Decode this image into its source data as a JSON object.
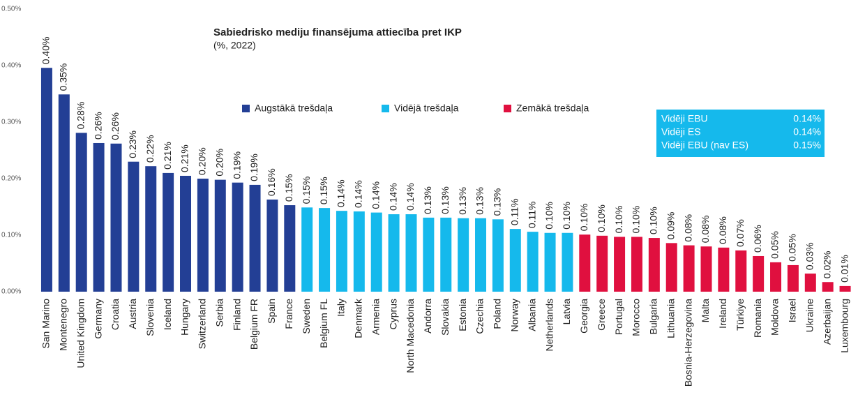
{
  "chart_data": {
    "type": "bar",
    "title": "Sabiedrisko mediju finansējuma attiecība pret IKP",
    "subtitle": "(%, 2022)",
    "categories": [
      "San Marino",
      "Montenegro",
      "United Kingdom",
      "Germany",
      "Croatia",
      "Austria",
      "Slovenia",
      "Iceland",
      "Hungary",
      "Switzerland",
      "Serbia",
      "Finland",
      "Belgium FR",
      "Spain",
      "France",
      "Sweden",
      "Belgium FL",
      "Italy",
      "Denmark",
      "Armenia",
      "Cyprus",
      "North Macedonia",
      "Andorra",
      "Slovakia",
      "Estonia",
      "Czechia",
      "Poland",
      "Norway",
      "Albania",
      "Netherlands",
      "Latvia",
      "Georgia",
      "Greece",
      "Portugal",
      "Morocco",
      "Bulgaria",
      "Lithuania",
      "Bosnia-Herzegovina",
      "Malta",
      "Ireland",
      "Türkiye",
      "Romania",
      "Moldova",
      "Israel",
      "Ukraine",
      "Azerbaijan",
      "Luxembourg"
    ],
    "values": [
      0.396,
      0.349,
      0.281,
      0.263,
      0.262,
      0.23,
      0.222,
      0.21,
      0.205,
      0.2,
      0.198,
      0.193,
      0.189,
      0.163,
      0.153,
      0.149,
      0.148,
      0.143,
      0.142,
      0.14,
      0.137,
      0.137,
      0.131,
      0.131,
      0.13,
      0.13,
      0.128,
      0.111,
      0.106,
      0.104,
      0.104,
      0.101,
      0.099,
      0.097,
      0.097,
      0.095,
      0.086,
      0.082,
      0.08,
      0.078,
      0.073,
      0.063,
      0.052,
      0.047,
      0.032,
      0.017,
      0.01
    ],
    "value_labels": [
      "0.40%",
      "0.35%",
      "0.28%",
      "0.26%",
      "0.26%",
      "0.23%",
      "0.22%",
      "0.21%",
      "0.21%",
      "0.20%",
      "0.20%",
      "0.19%",
      "0.19%",
      "0.16%",
      "0.15%",
      "0.15%",
      "0.15%",
      "0.14%",
      "0.14%",
      "0.14%",
      "0.14%",
      "0.14%",
      "0.13%",
      "0.13%",
      "0.13%",
      "0.13%",
      "0.13%",
      "0.11%",
      "0.11%",
      "0.10%",
      "0.10%",
      "0.10%",
      "0.10%",
      "0.10%",
      "0.10%",
      "0.10%",
      "0.09%",
      "0.08%",
      "0.08%",
      "0.08%",
      "0.07%",
      "0.06%",
      "0.05%",
      "0.05%",
      "0.03%",
      "0.02%",
      "0.01%"
    ],
    "groups": [
      0,
      0,
      0,
      0,
      0,
      0,
      0,
      0,
      0,
      0,
      0,
      0,
      0,
      0,
      0,
      1,
      1,
      1,
      1,
      1,
      1,
      1,
      1,
      1,
      1,
      1,
      1,
      1,
      1,
      1,
      1,
      2,
      2,
      2,
      2,
      2,
      2,
      2,
      2,
      2,
      2,
      2,
      2,
      2,
      2,
      2,
      2
    ],
    "legend": [
      {
        "name": "Augstākā trešdaļa",
        "color": "#233f95"
      },
      {
        "name": "Vidējā trešdaļa",
        "color": "#15b9ec"
      },
      {
        "name": "Zemākā trešdaļa",
        "color": "#e0103f"
      }
    ],
    "info_box": {
      "color": "#15b9ec",
      "rows": [
        {
          "label": "Vidēji EBU",
          "value": "0.14%"
        },
        {
          "label": "Vidēji ES",
          "value": "0.14%"
        },
        {
          "label": "Vidēji EBU (nav ES)",
          "value": "0.15%"
        }
      ]
    },
    "ylim": [
      0,
      0.5
    ],
    "yticks": [
      {
        "value": 0,
        "label": "0.00%"
      },
      {
        "value": 0.1,
        "label": "0.10%"
      },
      {
        "value": 0.2,
        "label": "0.20%"
      },
      {
        "value": 0.3,
        "label": "0.30%"
      },
      {
        "value": 0.4,
        "label": "0.40%"
      },
      {
        "value": 0.5,
        "label": "0.50%"
      }
    ]
  }
}
